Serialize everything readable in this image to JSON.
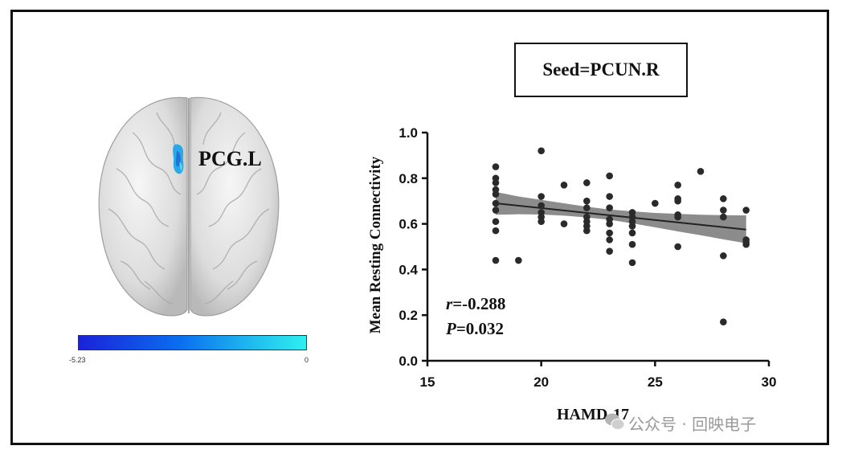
{
  "figure": {
    "brain_label": "PCG.L",
    "colorbar": {
      "min_label": "-5.23",
      "max_label": "0",
      "colors": [
        "#1b22d9",
        "#0a6ff0",
        "#1fb8ee",
        "#2ef0f0"
      ]
    },
    "seed_label": "Seed=PCUN.R",
    "stats": {
      "r_symbol": "r",
      "r_value": "=-0.288",
      "p_symbol": "P",
      "p_value": "=0.032"
    },
    "watermark": "公众号 · 回映电子"
  },
  "chart_data": {
    "type": "scatter",
    "xlabel": "HAMD-17",
    "ylabel": "Mean Resting Connectivity",
    "xlim": [
      15,
      30
    ],
    "ylim": [
      0.0,
      1.0
    ],
    "xticks": [
      "15",
      "20",
      "25",
      "30"
    ],
    "yticks": [
      "0.0",
      "0.2",
      "0.4",
      "0.6",
      "0.8",
      "1.0"
    ],
    "grid": false,
    "point_color": "#2a2a2a",
    "fit_line": {
      "x": [
        18,
        29
      ],
      "y": [
        0.69,
        0.575
      ],
      "color": "#222222"
    },
    "confidence_band": {
      "color": "#8c8c8c",
      "x": [
        18,
        19,
        20,
        21,
        22,
        23,
        24,
        25,
        26,
        27,
        28,
        29
      ],
      "upper": [
        0.74,
        0.72,
        0.705,
        0.69,
        0.675,
        0.663,
        0.655,
        0.648,
        0.644,
        0.64,
        0.638,
        0.637
      ],
      "lower": [
        0.64,
        0.642,
        0.641,
        0.636,
        0.628,
        0.618,
        0.602,
        0.585,
        0.567,
        0.55,
        0.532,
        0.515
      ]
    },
    "points": [
      {
        "x": 18,
        "y": 0.85
      },
      {
        "x": 18,
        "y": 0.8
      },
      {
        "x": 18,
        "y": 0.78
      },
      {
        "x": 18,
        "y": 0.75
      },
      {
        "x": 18,
        "y": 0.73
      },
      {
        "x": 18,
        "y": 0.69
      },
      {
        "x": 18,
        "y": 0.66
      },
      {
        "x": 18,
        "y": 0.61
      },
      {
        "x": 18,
        "y": 0.57
      },
      {
        "x": 18,
        "y": 0.44
      },
      {
        "x": 19,
        "y": 0.44
      },
      {
        "x": 20,
        "y": 0.92
      },
      {
        "x": 20,
        "y": 0.72
      },
      {
        "x": 20,
        "y": 0.68
      },
      {
        "x": 20,
        "y": 0.65
      },
      {
        "x": 20,
        "y": 0.63
      },
      {
        "x": 20,
        "y": 0.61
      },
      {
        "x": 21,
        "y": 0.77
      },
      {
        "x": 21,
        "y": 0.6
      },
      {
        "x": 22,
        "y": 0.78
      },
      {
        "x": 22,
        "y": 0.7
      },
      {
        "x": 22,
        "y": 0.67
      },
      {
        "x": 22,
        "y": 0.63
      },
      {
        "x": 22,
        "y": 0.61
      },
      {
        "x": 22,
        "y": 0.59
      },
      {
        "x": 22,
        "y": 0.57
      },
      {
        "x": 23,
        "y": 0.81
      },
      {
        "x": 23,
        "y": 0.72
      },
      {
        "x": 23,
        "y": 0.67
      },
      {
        "x": 23,
        "y": 0.62
      },
      {
        "x": 23,
        "y": 0.6
      },
      {
        "x": 23,
        "y": 0.56
      },
      {
        "x": 23,
        "y": 0.53
      },
      {
        "x": 23,
        "y": 0.48
      },
      {
        "x": 24,
        "y": 0.65
      },
      {
        "x": 24,
        "y": 0.63
      },
      {
        "x": 24,
        "y": 0.61
      },
      {
        "x": 24,
        "y": 0.59
      },
      {
        "x": 24,
        "y": 0.56
      },
      {
        "x": 24,
        "y": 0.51
      },
      {
        "x": 24,
        "y": 0.43
      },
      {
        "x": 25,
        "y": 0.69
      },
      {
        "x": 26,
        "y": 0.77
      },
      {
        "x": 26,
        "y": 0.71
      },
      {
        "x": 26,
        "y": 0.7
      },
      {
        "x": 26,
        "y": 0.64
      },
      {
        "x": 26,
        "y": 0.63
      },
      {
        "x": 26,
        "y": 0.5
      },
      {
        "x": 27,
        "y": 0.83
      },
      {
        "x": 28,
        "y": 0.71
      },
      {
        "x": 28,
        "y": 0.66
      },
      {
        "x": 28,
        "y": 0.63
      },
      {
        "x": 28,
        "y": 0.46
      },
      {
        "x": 28,
        "y": 0.17
      },
      {
        "x": 29,
        "y": 0.66
      },
      {
        "x": 29,
        "y": 0.53
      },
      {
        "x": 29,
        "y": 0.52
      },
      {
        "x": 29,
        "y": 0.51
      }
    ]
  }
}
